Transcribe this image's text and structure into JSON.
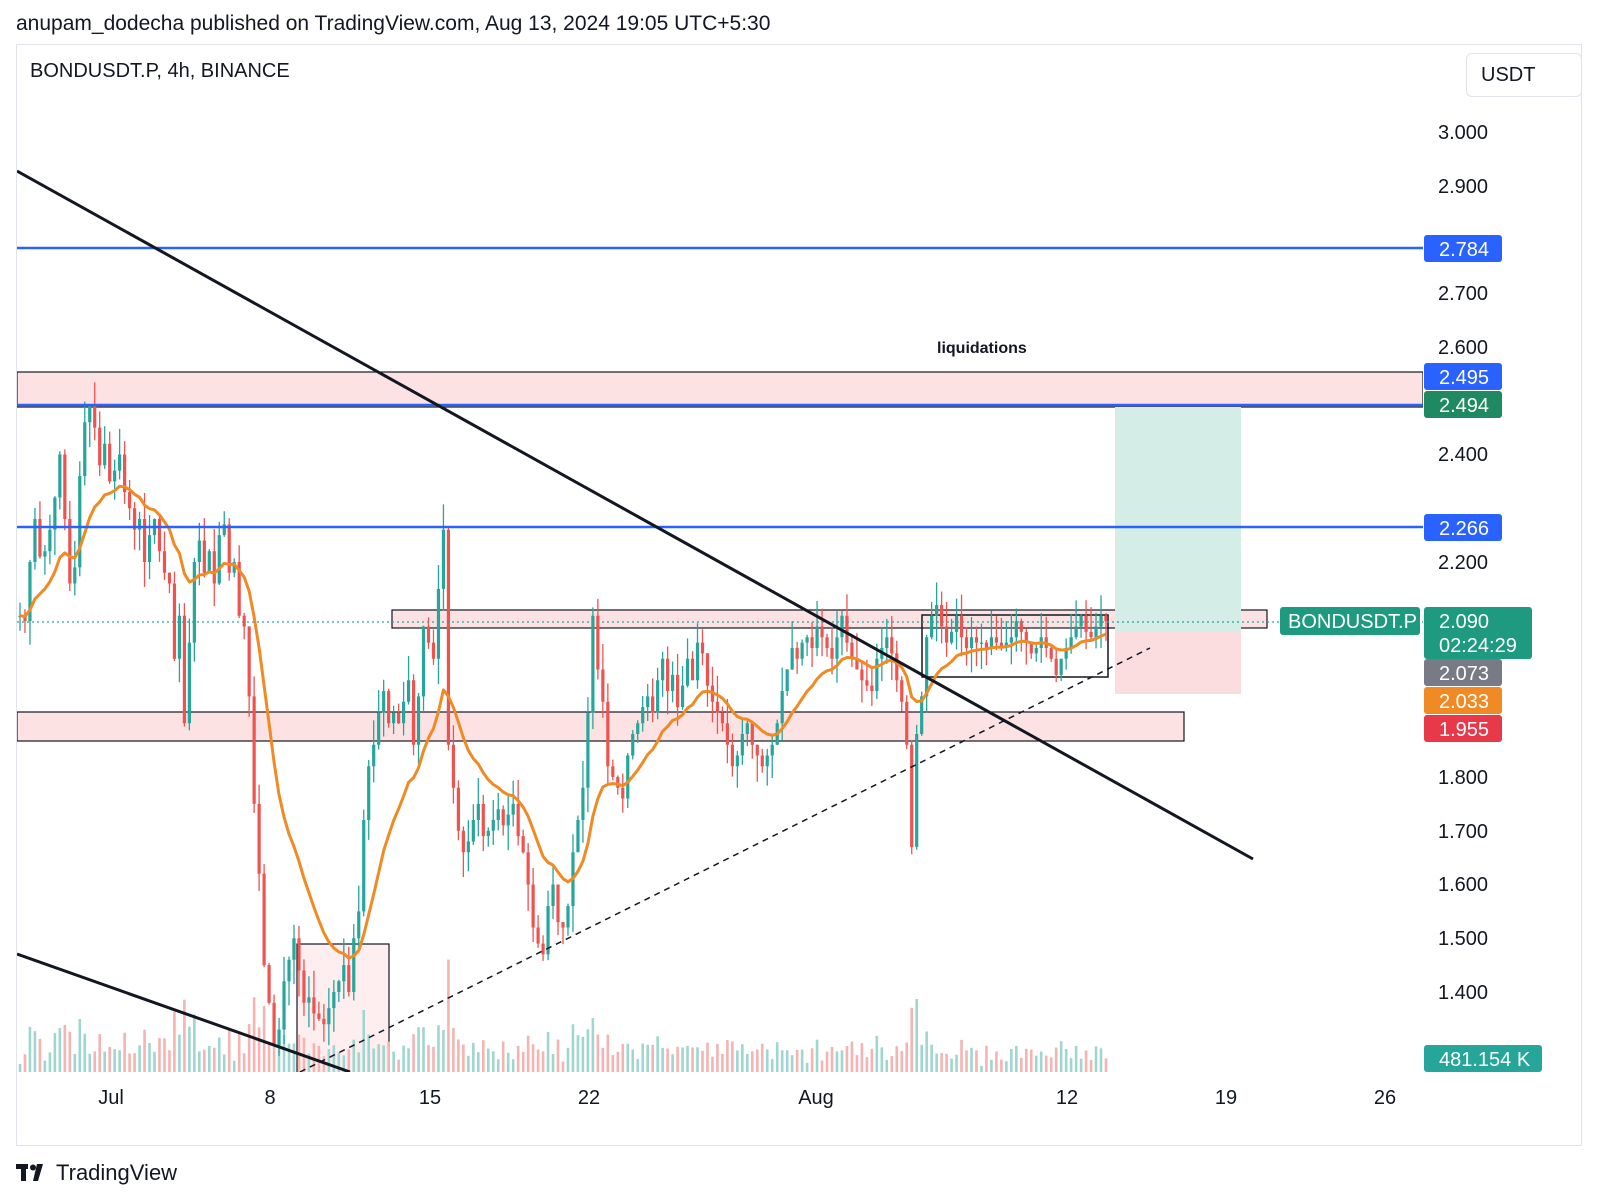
{
  "header": {
    "published_by": "anupam_dodecha published on TradingView.com, Aug 13, 2024 19:05 UTC+5:30"
  },
  "symbol_line": "BONDUSDT.P, 4h, BINANCE",
  "currency_button": "USDT",
  "footer": {
    "brand": "TradingView",
    "logo_icon": "tradingview-logo-icon"
  },
  "colors": {
    "up": "#26a69a",
    "down": "#ef5350",
    "ma": "#f08a24",
    "hline": "#2962ff",
    "zone": "#fde2e4",
    "target": "#d4ede7",
    "stop": "#fbdcdf"
  },
  "annotations": {
    "zone_label": "liquidations"
  },
  "price_labels": {
    "l1": "2.784",
    "l2": "2.495",
    "l3": "2.494",
    "l4": "2.266",
    "ticker": "BONDUSDT.P",
    "current": "2.090",
    "countdown": "02:24:29",
    "p1": "2.073",
    "p2": "2.033",
    "p3": "1.955",
    "volume": "481.154 K"
  },
  "chart_data": {
    "type": "candlestick",
    "symbol": "BONDUSDT.P",
    "interval": "4h",
    "exchange": "BINANCE",
    "ylim": [
      1.2,
      3.1
    ],
    "y_ticks": [
      "3.000",
      "2.900",
      "2.700",
      "2.600",
      "2.400",
      "2.200",
      "1.800",
      "1.700",
      "1.600",
      "1.500",
      "1.400"
    ],
    "x_ticks": [
      "Jul",
      "8",
      "15",
      "22",
      "Aug",
      "12",
      "19",
      "26"
    ],
    "horizontal_lines": [
      2.784,
      2.494,
      2.266
    ],
    "zones": [
      {
        "label": "liquidations",
        "from": 2.495,
        "to": 2.56
      },
      {
        "from": 1.88,
        "to": 1.935
      },
      {
        "from": 2.085,
        "to": 2.12
      }
    ],
    "position": {
      "entry": 2.09,
      "target": 2.494,
      "stop": 1.96
    },
    "last_price": 2.09,
    "ma_value": 2.033,
    "volume_last": "481.154 K",
    "series_close": [
      2.1,
      2.09,
      2.2,
      2.28,
      2.21,
      2.22,
      2.26,
      2.32,
      2.4,
      2.28,
      2.16,
      2.19,
      2.36,
      2.46,
      2.49,
      2.45,
      2.38,
      2.42,
      2.35,
      2.37,
      2.4,
      2.33,
      2.3,
      2.26,
      2.28,
      2.2,
      2.25,
      2.28,
      2.22,
      2.18,
      2.16,
      2.02,
      2.1,
      1.9,
      2.05,
      2.2,
      2.24,
      2.18,
      2.22,
      2.16,
      2.25,
      2.27,
      2.18,
      2.2,
      2.1,
      2.08,
      1.95,
      1.75,
      1.62,
      1.45,
      1.38,
      1.3,
      1.33,
      1.42,
      1.46,
      1.5,
      1.44,
      1.38,
      1.39,
      1.36,
      1.35,
      1.34,
      1.37,
      1.4,
      1.42,
      1.45,
      1.4,
      1.5,
      1.55,
      1.72,
      1.82,
      1.86,
      1.92,
      1.96,
      1.9,
      1.92,
      1.9,
      1.94,
      1.98,
      1.86,
      1.95,
      2.08,
      2.05,
      2.02,
      2.15,
      2.26,
      1.86,
      1.78,
      1.7,
      1.66,
      1.68,
      1.72,
      1.75,
      1.69,
      1.7,
      1.72,
      1.74,
      1.71,
      1.73,
      1.75,
      1.69,
      1.66,
      1.6,
      1.52,
      1.49,
      1.47,
      1.56,
      1.6,
      1.53,
      1.52,
      1.56,
      1.66,
      1.72,
      1.78,
      1.92,
      2.1,
      2.0,
      1.94,
      1.82,
      1.8,
      1.78,
      1.76,
      1.84,
      1.88,
      1.9,
      1.93,
      1.95,
      1.92,
      1.98,
      2.02,
      1.96,
      1.99,
      1.93,
      1.97,
      2.02,
      1.98,
      2.05,
      2.03,
      1.97,
      1.94,
      1.92,
      1.9,
      1.86,
      1.82,
      1.84,
      1.88,
      1.9,
      1.86,
      1.84,
      1.82,
      1.84,
      1.86,
      1.9,
      1.96,
      2.0,
      2.04,
      2.02,
      2.05,
      2.06,
      2.04,
      2.08,
      2.06,
      2.04,
      2.02,
      2.06,
      2.1,
      2.05,
      2.02,
      2.0,
      1.98,
      1.97,
      1.96,
      2.02,
      2.04,
      2.06,
      2.03,
      1.98,
      1.94,
      1.86,
      1.67,
      1.88,
      1.95,
      2.06,
      2.1,
      2.12,
      2.08,
      2.05,
      2.07,
      2.1,
      2.06,
      2.04,
      2.06,
      2.05,
      2.05,
      2.04,
      2.06,
      2.05,
      2.04,
      2.05,
      2.06,
      2.09,
      2.07,
      2.05,
      2.03,
      2.04,
      2.06,
      2.04,
      2.02,
      1.99,
      2.02,
      2.04,
      2.06,
      2.08,
      2.1,
      2.07,
      2.06,
      2.08,
      2.1,
      2.09
    ]
  }
}
